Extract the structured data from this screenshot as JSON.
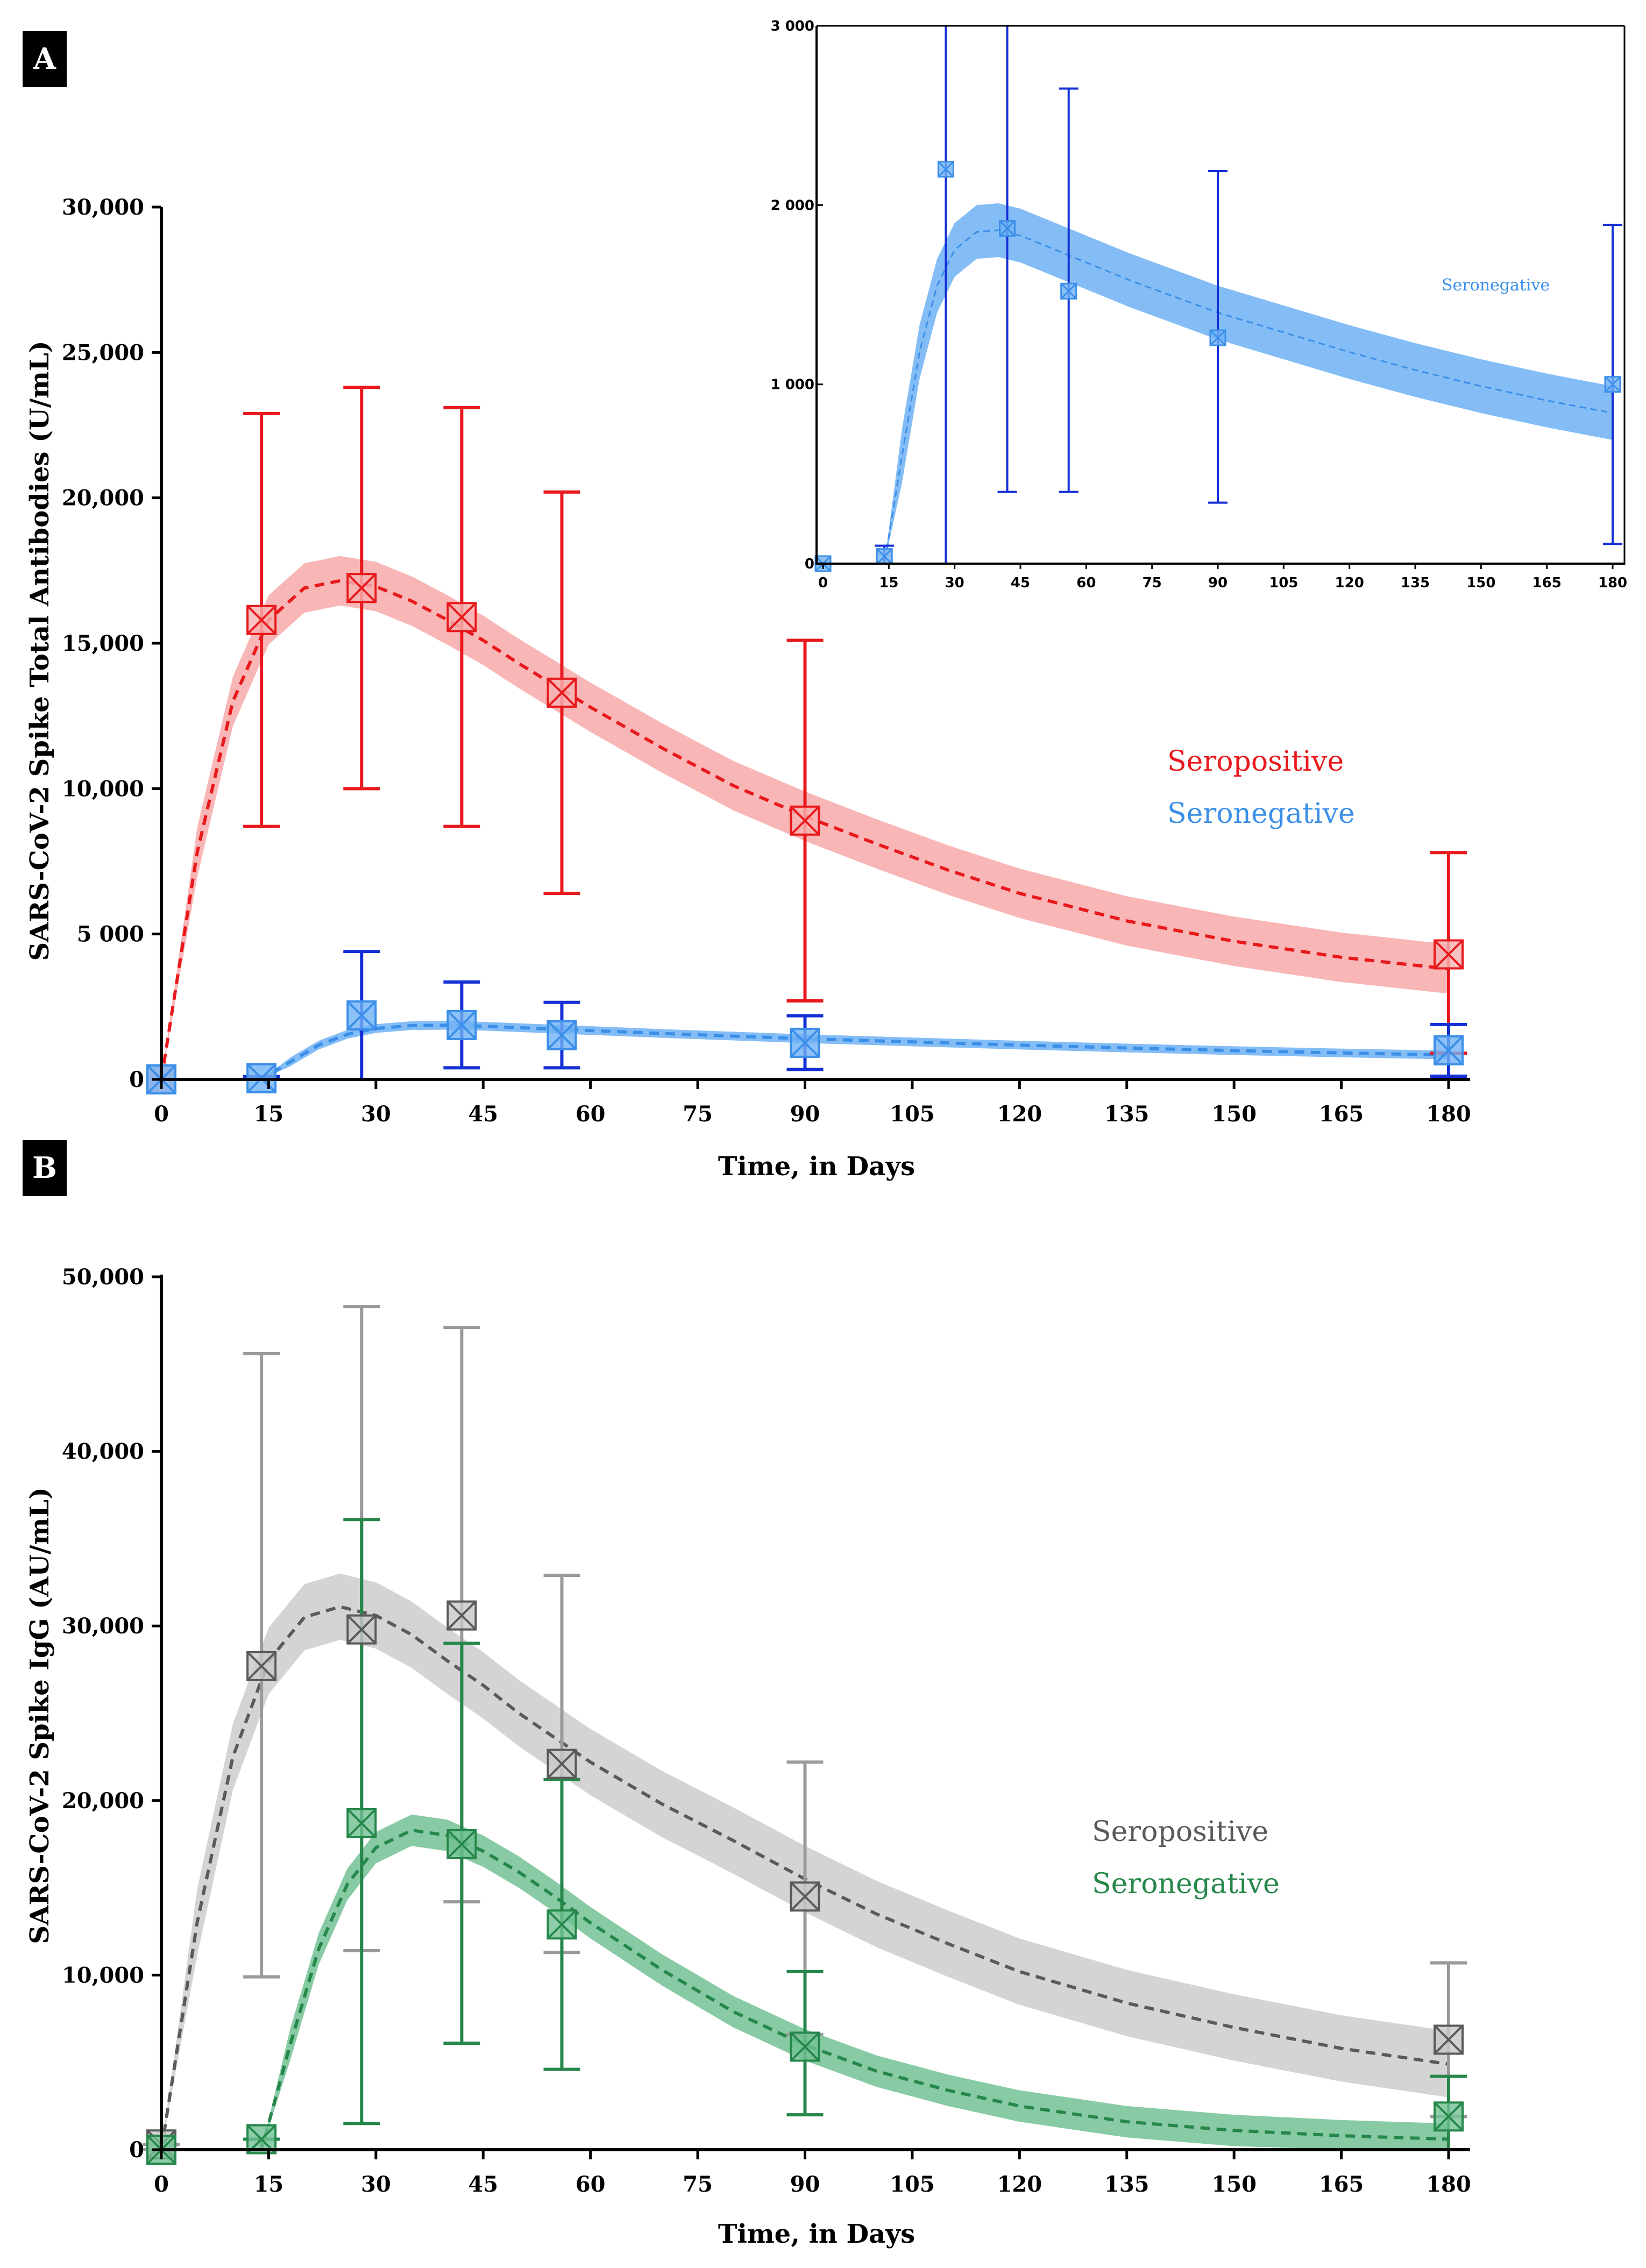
{
  "chart_data": [
    {
      "panel": "A",
      "type": "line",
      "xlabel": "Time, in Days",
      "ylabel": "SARS-CoV-2 Spike Total Antibodies (U/mL)",
      "xlim": [
        0,
        180
      ],
      "ylim": [
        0,
        30000
      ],
      "x_ticks": [
        0,
        15,
        30,
        45,
        60,
        75,
        90,
        105,
        120,
        135,
        150,
        165,
        180
      ],
      "x_tick_labels": [
        "0",
        "15",
        "30",
        "45",
        "60",
        "75",
        "90",
        "105",
        "120",
        "135",
        "150",
        "165",
        "180"
      ],
      "y_ticks": [
        0,
        5000,
        10000,
        15000,
        20000,
        25000,
        30000
      ],
      "y_tick_labels": [
        "0",
        "5 000",
        "10,000",
        "15,000",
        "20,000",
        "25,000",
        "30,000"
      ],
      "series": [
        {
          "name": "Seropositive",
          "color": "#e8191c",
          "band_color": "#f7a9a9",
          "points": [
            {
              "x": 0,
              "y": 0,
              "lo": 0,
              "hi": 0
            },
            {
              "x": 14,
              "y": 15800,
              "lo": 8700,
              "hi": 22900
            },
            {
              "x": 28,
              "y": 16900,
              "lo": 10000,
              "hi": 23800
            },
            {
              "x": 42,
              "y": 15900,
              "lo": 8700,
              "hi": 23100
            },
            {
              "x": 56,
              "y": 13300,
              "lo": 6400,
              "hi": 20200
            },
            {
              "x": 90,
              "y": 8900,
              "lo": 2700,
              "hi": 15100
            },
            {
              "x": 180,
              "y": 4300,
              "lo": 900,
              "hi": 7800
            }
          ],
          "fit": [
            [
              0,
              0
            ],
            [
              5,
              7800
            ],
            [
              10,
              13000
            ],
            [
              15,
              15800
            ],
            [
              20,
              16900
            ],
            [
              25,
              17150
            ],
            [
              30,
              16950
            ],
            [
              35,
              16450
            ],
            [
              40,
              15800
            ],
            [
              45,
              15100
            ],
            [
              50,
              14300
            ],
            [
              60,
              12800
            ],
            [
              70,
              11400
            ],
            [
              80,
              10100
            ],
            [
              90,
              9050
            ],
            [
              100,
              8100
            ],
            [
              110,
              7200
            ],
            [
              120,
              6400
            ],
            [
              135,
              5450
            ],
            [
              150,
              4750
            ],
            [
              165,
              4200
            ],
            [
              180,
              3800
            ]
          ],
          "band_half_width": 850
        },
        {
          "name": "Seronegative",
          "color": "#3b8fe8",
          "band_color": "#6fb2f5",
          "points": [
            {
              "x": 0,
              "y": 0,
              "lo": 0,
              "hi": 0
            },
            {
              "x": 14,
              "y": 40,
              "lo": 0,
              "hi": 100
            },
            {
              "x": 28,
              "y": 2200,
              "lo": 0,
              "hi": 4400
            },
            {
              "x": 42,
              "y": 1870,
              "lo": 400,
              "hi": 3350
            },
            {
              "x": 56,
              "y": 1520,
              "lo": 400,
              "hi": 2650
            },
            {
              "x": 90,
              "y": 1260,
              "lo": 340,
              "hi": 2190
            },
            {
              "x": 180,
              "y": 1000,
              "lo": 110,
              "hi": 1890
            }
          ],
          "fit": [
            [
              0,
              0
            ],
            [
              14,
              0
            ],
            [
              18,
              600
            ],
            [
              22,
              1180
            ],
            [
              26,
              1550
            ],
            [
              30,
              1750
            ],
            [
              35,
              1850
            ],
            [
              40,
              1860
            ],
            [
              45,
              1830
            ],
            [
              50,
              1780
            ],
            [
              60,
              1680
            ],
            [
              70,
              1580
            ],
            [
              80,
              1490
            ],
            [
              90,
              1400
            ],
            [
              105,
              1290
            ],
            [
              120,
              1180
            ],
            [
              135,
              1080
            ],
            [
              150,
              990
            ],
            [
              165,
              910
            ],
            [
              180,
              840
            ]
          ],
          "band_half_width": 150
        }
      ],
      "inset": {
        "xlim": [
          0,
          180
        ],
        "ylim": [
          0,
          3000
        ],
        "x_tick_labels": [
          "0",
          "15",
          "30",
          "45",
          "60",
          "75",
          "90",
          "105",
          "120",
          "135",
          "150",
          "165",
          "180"
        ],
        "y_tick_labels": [
          "0",
          "1 000",
          "2 000",
          "3 000"
        ],
        "legend": "Seronegative"
      }
    },
    {
      "panel": "B",
      "type": "line",
      "xlabel": "Time, in Days",
      "ylabel": "SARS-CoV-2 Spike IgG (AU/mL)",
      "xlim": [
        0,
        180
      ],
      "ylim": [
        0,
        50000
      ],
      "x_ticks": [
        0,
        15,
        30,
        45,
        60,
        75,
        90,
        105,
        120,
        135,
        150,
        165,
        180
      ],
      "x_tick_labels": [
        "0",
        "15",
        "30",
        "45",
        "60",
        "75",
        "90",
        "105",
        "120",
        "135",
        "150",
        "165",
        "180"
      ],
      "y_ticks": [
        0,
        10000,
        20000,
        30000,
        40000,
        50000
      ],
      "y_tick_labels": [
        "0",
        "10,000",
        "20,000",
        "30,000",
        "40,000",
        "50,000"
      ],
      "series": [
        {
          "name": "Seropositive",
          "color": "#5a5a5a",
          "band_color": "#cccccc",
          "points": [
            {
              "x": 0,
              "y": 300,
              "lo": 0,
              "hi": 300
            },
            {
              "x": 14,
              "y": 27700,
              "lo": 9900,
              "hi": 45600
            },
            {
              "x": 28,
              "y": 29800,
              "lo": 11400,
              "hi": 48300
            },
            {
              "x": 42,
              "y": 30600,
              "lo": 14200,
              "hi": 47100
            },
            {
              "x": 56,
              "y": 22100,
              "lo": 11300,
              "hi": 32900
            },
            {
              "x": 90,
              "y": 14500,
              "lo": 6600,
              "hi": 22200
            },
            {
              "x": 180,
              "y": 6300,
              "lo": 1900,
              "hi": 10700
            }
          ],
          "fit": [
            [
              0,
              0
            ],
            [
              5,
              13000
            ],
            [
              10,
              22500
            ],
            [
              15,
              28000
            ],
            [
              20,
              30500
            ],
            [
              25,
              31100
            ],
            [
              30,
              30600
            ],
            [
              35,
              29500
            ],
            [
              40,
              28000
            ],
            [
              45,
              26600
            ],
            [
              50,
              25000
            ],
            [
              60,
              22200
            ],
            [
              70,
              19800
            ],
            [
              80,
              17700
            ],
            [
              90,
              15500
            ],
            [
              100,
              13500
            ],
            [
              110,
              11800
            ],
            [
              120,
              10200
            ],
            [
              135,
              8400
            ],
            [
              150,
              7000
            ],
            [
              165,
              5800
            ],
            [
              180,
              4900
            ]
          ],
          "band_half_width": 1900
        },
        {
          "name": "Seronegative",
          "color": "#26874a",
          "band_color": "#72c193",
          "points": [
            {
              "x": 0,
              "y": 0,
              "lo": 0,
              "hi": 0
            },
            {
              "x": 14,
              "y": 600,
              "lo": 0,
              "hi": 600
            },
            {
              "x": 28,
              "y": 18700,
              "lo": 1500,
              "hi": 36100
            },
            {
              "x": 42,
              "y": 17500,
              "lo": 6100,
              "hi": 29000
            },
            {
              "x": 56,
              "y": 12900,
              "lo": 4600,
              "hi": 21200
            },
            {
              "x": 90,
              "y": 5900,
              "lo": 2000,
              "hi": 10200
            },
            {
              "x": 180,
              "y": 1900,
              "lo": 0,
              "hi": 4200
            }
          ],
          "fit": [
            [
              0,
              0
            ],
            [
              14,
              0
            ],
            [
              18,
              6000
            ],
            [
              22,
              11500
            ],
            [
              26,
              15200
            ],
            [
              30,
              17300
            ],
            [
              35,
              18300
            ],
            [
              40,
              18000
            ],
            [
              45,
              17100
            ],
            [
              50,
              15900
            ],
            [
              55,
              14500
            ],
            [
              60,
              13000
            ],
            [
              70,
              10300
            ],
            [
              80,
              7900
            ],
            [
              90,
              6000
            ],
            [
              100,
              4500
            ],
            [
              110,
              3400
            ],
            [
              120,
              2500
            ],
            [
              135,
              1600
            ],
            [
              150,
              1100
            ],
            [
              165,
              800
            ],
            [
              180,
              600
            ]
          ],
          "band_half_width": 900
        }
      ]
    }
  ]
}
